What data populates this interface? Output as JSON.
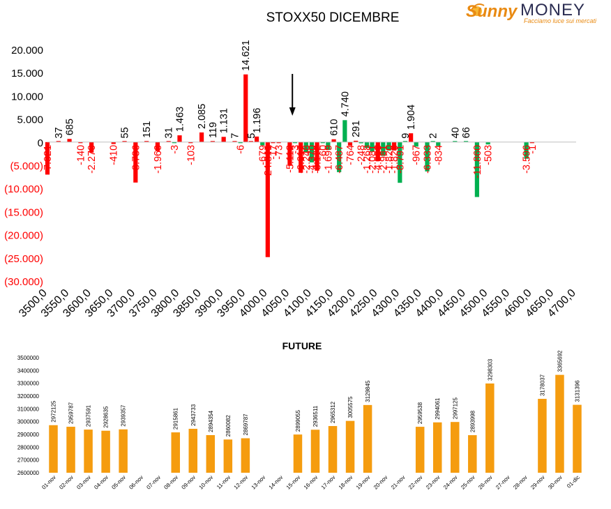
{
  "logo": {
    "word1": "Sunny",
    "word2": "MONEY",
    "tagline": "Facciamo luce sui mercati"
  },
  "colors": {
    "red": "#ff0000",
    "green": "#00b050",
    "orange": "#f59c0f",
    "black": "#000000",
    "logo_orange": "#e98a12",
    "logo_navy": "#2b2d52"
  },
  "chart_data": [
    {
      "type": "bar",
      "title": "STOXX50 DICEMBRE",
      "xlabel": "",
      "ylabel": "",
      "ylim": [
        -30000,
        20000
      ],
      "y_ticks": [
        20000,
        15000,
        10000,
        5000,
        0,
        -5000,
        -10000,
        -15000,
        -20000,
        -25000,
        -30000
      ],
      "y_tick_labels": [
        "20.000",
        "15.000",
        "10.000",
        "5.000",
        "0",
        "(5.000)",
        "(10.000)",
        "(15.000)",
        "(20.000)",
        "(25.000)",
        "(30.000)"
      ],
      "x_tick_labels": [
        "3500,0",
        "3550,0",
        "3600,0",
        "3650,0",
        "3700,0",
        "3750,0",
        "3800,0",
        "3850,0",
        "3900,0",
        "3950,0",
        "4000,0",
        "4050,0",
        "4100,0",
        "4150,0",
        "4200,0",
        "4250,0",
        "4300,0",
        "4350,0",
        "4400,0",
        "4450,0",
        "4500,0",
        "4550,0",
        "4600,0",
        "4650,0",
        "4700,0"
      ],
      "x_range": [
        3500,
        4700
      ],
      "current_price_marker": 4075,
      "series": [
        {
          "color": "red",
          "points": [
            {
              "x": 3500,
              "value": -7021,
              "label": "-7.021"
            },
            {
              "x": 3525,
              "value": 37,
              "label": "37"
            },
            {
              "x": 3550,
              "value": 685,
              "label": "685"
            },
            {
              "x": 3575,
              "value": -140,
              "label": "-140"
            },
            {
              "x": 3600,
              "value": -2270,
              "label": "-2.270"
            },
            {
              "x": 3650,
              "value": -410,
              "label": "-410"
            },
            {
              "x": 3675,
              "value": 55,
              "label": "55"
            },
            {
              "x": 3700,
              "value": -8736,
              "label": "-8.736"
            },
            {
              "x": 3725,
              "value": 151,
              "label": "151"
            },
            {
              "x": 3750,
              "value": -1960,
              "label": "-1.960"
            },
            {
              "x": 3775,
              "value": 31,
              "label": "31"
            },
            {
              "x": 3800,
              "value": 1463,
              "label": "1.463"
            },
            {
              "x": 3825,
              "value": -103,
              "label": "-103"
            },
            {
              "x": 3850,
              "value": 2085,
              "label": "2.085"
            },
            {
              "x": 3875,
              "value": 119,
              "label": "119"
            },
            {
              "x": 3900,
              "value": 1131,
              "label": "1.131"
            },
            {
              "x": 3925,
              "value": 7,
              "label": "7"
            },
            {
              "x": 3950,
              "value": 14621,
              "label": "14.621"
            },
            {
              "x": 3962,
              "value": 5,
              "label": "5"
            },
            {
              "x": 3975,
              "value": 1196,
              "label": "1.196"
            },
            {
              "x": 4000,
              "value": -24841,
              "label": "-24.841"
            },
            {
              "x": 4012,
              "value": -17,
              "label": "-17"
            },
            {
              "x": 4025,
              "value": -73,
              "label": "-73"
            },
            {
              "x": 4050,
              "value": -5112,
              "label": "-5.112"
            },
            {
              "x": 4075,
              "value": -6617,
              "label": "-6.617"
            },
            {
              "x": 4112,
              "value": -6172,
              "label": "-6.172"
            },
            {
              "x": 4150,
              "value": 610,
              "label": "610"
            },
            {
              "x": 4187,
              "value": -764,
              "label": "-764"
            },
            {
              "x": 4200,
              "value": 291,
              "label": "291"
            },
            {
              "x": 4250,
              "value": -4096,
              "label": "-4.096"
            },
            {
              "x": 4287,
              "value": -1820,
              "label": "-1.820"
            },
            {
              "x": 4325,
              "value": 1904,
              "label": "1.904"
            },
            {
              "x": 4600,
              "value": -1,
              "label": "-1"
            }
          ]
        },
        {
          "color": "green",
          "points": [
            {
              "x": 3788,
              "value": -3,
              "label": "-3"
            },
            {
              "x": 3938,
              "value": -6,
              "label": "-6"
            },
            {
              "x": 3988,
              "value": -679,
              "label": "-679"
            },
            {
              "x": 4062,
              "value": -3,
              "label": "-3"
            },
            {
              "x": 4087,
              "value": -2248,
              "label": "-2.248"
            },
            {
              "x": 4100,
              "value": -4370,
              "label": "-4.370"
            },
            {
              "x": 4125,
              "value": -60,
              "label": "-60"
            },
            {
              "x": 4137,
              "value": -1699,
              "label": "-1.699"
            },
            {
              "x": 4162,
              "value": -6487,
              "label": "-6.487"
            },
            {
              "x": 4175,
              "value": 4740,
              "label": "4.740"
            },
            {
              "x": 4212,
              "value": -248,
              "label": "-248"
            },
            {
              "x": 4225,
              "value": -1268,
              "label": "-1.268"
            },
            {
              "x": 4237,
              "value": -2081,
              "label": "-2.081"
            },
            {
              "x": 4262,
              "value": -2981,
              "label": "-2.981"
            },
            {
              "x": 4275,
              "value": -1820,
              "label": "-1.820"
            },
            {
              "x": 4300,
              "value": -8791,
              "label": "-8.791"
            },
            {
              "x": 4312,
              "value": 9,
              "label": "9"
            },
            {
              "x": 4337,
              "value": -967,
              "label": "-967"
            },
            {
              "x": 4362,
              "value": -6333,
              "label": "-6.333"
            },
            {
              "x": 4375,
              "value": 2,
              "label": "2"
            },
            {
              "x": 4387,
              "value": -834,
              "label": "-834"
            },
            {
              "x": 4425,
              "value": 40,
              "label": "40"
            },
            {
              "x": 4450,
              "value": 66,
              "label": "66"
            },
            {
              "x": 4475,
              "value": -11860,
              "label": "-11.860"
            },
            {
              "x": 4500,
              "value": -503,
              "label": "-503"
            },
            {
              "x": 4587,
              "value": -3596,
              "label": "-3.596"
            }
          ]
        }
      ]
    },
    {
      "type": "bar",
      "title": "FUTURE",
      "xlabel": "",
      "ylabel": "",
      "ylim": [
        2600000,
        3500000
      ],
      "y_ticks": [
        3500000,
        3400000,
        3300000,
        3200000,
        3100000,
        3000000,
        2900000,
        2800000,
        2700000,
        2600000
      ],
      "y_tick_labels": [
        "3500000",
        "3400000",
        "3300000",
        "3200000",
        "3100000",
        "3000000",
        "2900000",
        "2800000",
        "2700000",
        "2600000"
      ],
      "categories": [
        "01-nov",
        "02-nov",
        "03-nov",
        "04-nov",
        "05-nov",
        "06-nov",
        "07-nov",
        "08-nov",
        "09-nov",
        "10-nov",
        "11-nov",
        "12-nov",
        "13-nov",
        "14-nov",
        "15-nov",
        "16-nov",
        "17-nov",
        "18-nov",
        "19-nov",
        "20-nov",
        "21-nov",
        "22-nov",
        "23-nov",
        "24-nov",
        "25-nov",
        "26-nov",
        "27-nov",
        "28-nov",
        "29-nov",
        "30-nov",
        "01-dic"
      ],
      "values": [
        2972125,
        2959787,
        2937591,
        2928635,
        2939357,
        null,
        null,
        2915861,
        2943733,
        2894354,
        2860082,
        2869787,
        null,
        null,
        2899055,
        2936511,
        2965312,
        3005575,
        3129845,
        null,
        null,
        2959538,
        2994061,
        2997125,
        2893998,
        3298303,
        null,
        null,
        3178037,
        3365692,
        3131396
      ],
      "value_labels": [
        "2972125",
        "2959787",
        "2937591",
        "2928635",
        "2939357",
        "",
        "",
        "2915861",
        "2943733",
        "2894354",
        "2860082",
        "2869787",
        "",
        "",
        "2899055",
        "2936511",
        "2965312",
        "3005575",
        "3129845",
        "",
        "",
        "2959538",
        "2994061",
        "2997125",
        "2893998",
        "3298303",
        "",
        "",
        "3178037",
        "3365692",
        "3131396"
      ]
    }
  ]
}
